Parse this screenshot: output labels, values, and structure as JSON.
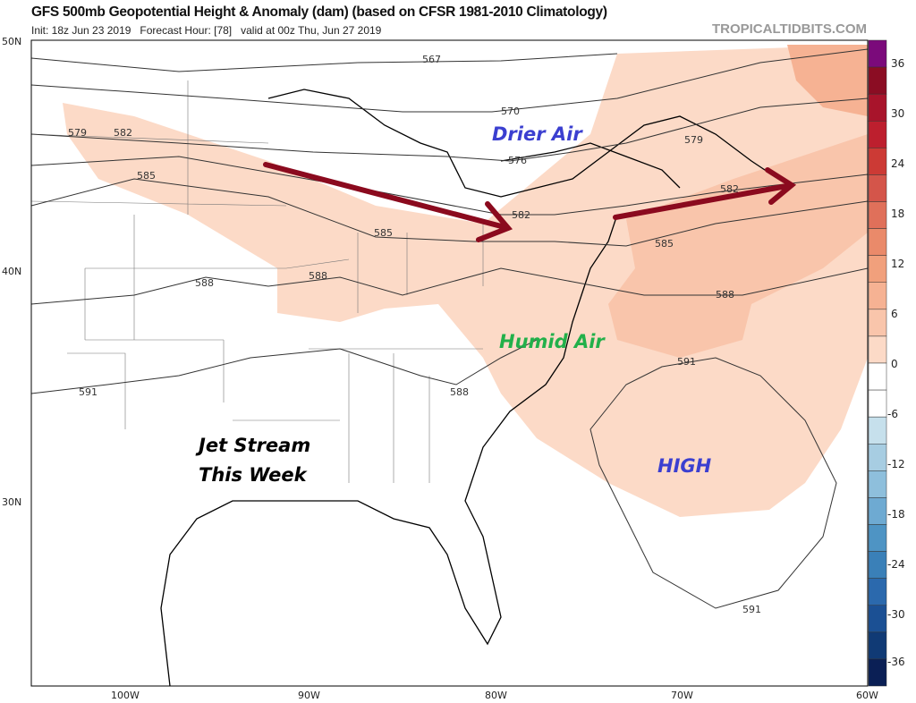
{
  "header": {
    "title": "GFS 500mb Geopotential Height & Anomaly (dam) (based on CFSR 1981-2010 Climatology)",
    "subtitle": "Init: 18z Jun 23 2019   Forecast Hour: [78]   valid at 00z Thu, Jun 27 2019",
    "brand": "TROPICALTIDBITS.COM"
  },
  "map": {
    "lat_labels": [
      "50N",
      "40N",
      "30N"
    ],
    "lon_labels": [
      "100W",
      "90W",
      "80W",
      "70W",
      "60W"
    ],
    "contour_labels": [
      "567",
      "570",
      "576",
      "579",
      "579",
      "582",
      "582",
      "582",
      "585",
      "585",
      "585",
      "588",
      "588",
      "588",
      "588",
      "591",
      "591",
      "591"
    ],
    "annotations": {
      "drier": "Drier Air",
      "humid": "Humid Air",
      "high": "HIGH",
      "jet1": "Jet Stream",
      "jet2": "This Week"
    },
    "annotation_colors": {
      "drier": "#3b3fd0",
      "humid": "#22b04a",
      "high": "#3b3fd0",
      "jet": "#000000",
      "arrow": "#8b0a1e"
    }
  },
  "colorbar": {
    "tick_labels": [
      "36",
      "30",
      "24",
      "18",
      "12",
      "6",
      "0",
      "-6",
      "-12",
      "-18",
      "-24",
      "-30",
      "-36"
    ],
    "colors": [
      "#7b0a7b",
      "#8b0d23",
      "#a8142b",
      "#bd1f2e",
      "#cc3a35",
      "#d4554a",
      "#e0705a",
      "#ea8a6a",
      "#f1a07c",
      "#f6b293",
      "#f9c5ab",
      "#fcdac7",
      "#ffffff",
      "#ffffff",
      "#c6e0ec",
      "#a7cde2",
      "#8ebfdc",
      "#6eaad2",
      "#4e94c4",
      "#3a80b8",
      "#2b69ad",
      "#1b5094",
      "#103a75",
      "#0a1f55"
    ]
  }
}
